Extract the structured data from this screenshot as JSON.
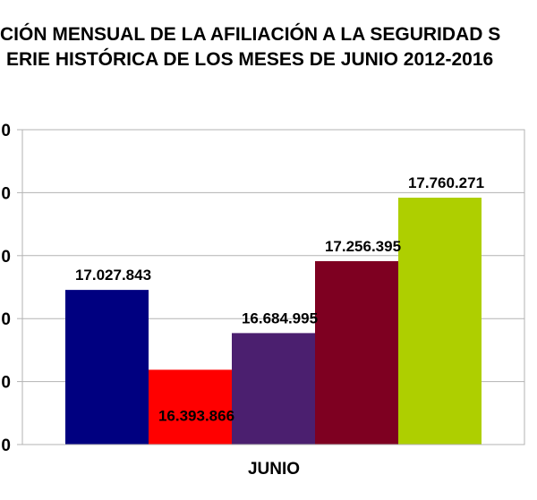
{
  "chart_data": {
    "type": "bar",
    "title_lines": [
      "CIÓN MENSUAL DE LA  AFILIACIÓN A LA SEGURIDAD S",
      "ERIE HISTÓRICA DE LOS MESES DE JUNIO 2012-2016"
    ],
    "categories": [
      "JUNIO"
    ],
    "series": [
      {
        "values": [
          17027843
        ],
        "label": "17.027.843",
        "color": "#000080"
      },
      {
        "values": [
          16393866
        ],
        "label": "16.393.866",
        "color": "#ff0000"
      },
      {
        "values": [
          16684995
        ],
        "label": "16.684.995",
        "color": "#4b1f6f"
      },
      {
        "values": [
          17256395
        ],
        "label": "17.256.395",
        "color": "#7e0021"
      },
      {
        "values": [
          17760271
        ],
        "label": "17.760.271",
        "color": "#aecf00"
      }
    ],
    "ylim": [
      15800000,
      18300000
    ],
    "y_ticks": [
      15800000,
      16300000,
      16800000,
      17300000,
      17800000,
      18300000
    ],
    "y_tick_labels": [
      "0",
      "0",
      "0",
      "0",
      "0",
      "0"
    ],
    "grid": true,
    "legend": "none"
  }
}
